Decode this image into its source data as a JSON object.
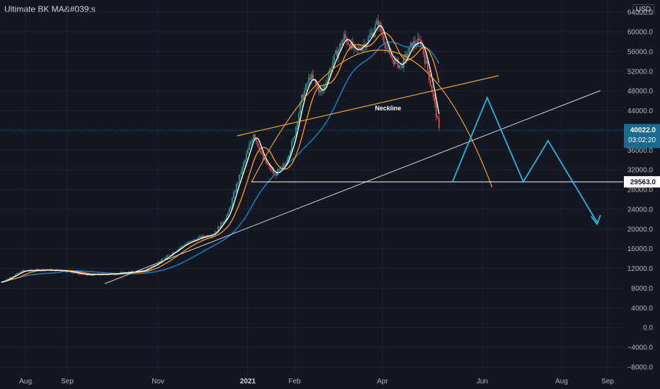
{
  "header": {
    "title": "Ultimate BK MA&#039;s",
    "currency": "USD"
  },
  "colors": {
    "background": "#131722",
    "grid": "#1e222d",
    "axis_text": "#b2b5be",
    "candle_up": "#26a69a",
    "candle_down": "#ef5350",
    "ma_fast": "#ffffff",
    "ma_mid": "#f7931a",
    "ma_slow": "#1f78b4",
    "arc": "#f0a030",
    "neckline": "#f0a030",
    "trendline": "#d1d4dc",
    "projection": "#29b6d6",
    "support": "#ffffff"
  },
  "chart_data": {
    "type": "candlestick",
    "title": "",
    "xlabel": "",
    "ylabel": "",
    "x_ticks": [
      "Aug",
      "Sep",
      "Nov",
      "2021",
      "Feb",
      "Apr",
      "Jun",
      "Aug",
      "Sep"
    ],
    "y_ticks": [
      -8000,
      -4000,
      0,
      4000,
      8000,
      12000,
      16000,
      20000,
      24000,
      28000,
      32000,
      36000,
      40000,
      44000,
      48000,
      52000,
      56000,
      60000,
      64000
    ],
    "y_tick_labels": [
      "−8000.0",
      "−4000.0",
      "0.0",
      "4000.0",
      "8000.0",
      "12000.0",
      "16000.0",
      "20000.0",
      "24000.0",
      "28000.0",
      "32000.0",
      "36000.0",
      "40000.0",
      "44000.0",
      "48000.0",
      "52000.0",
      "56000.0",
      "60000.0",
      "64000.0"
    ],
    "ylim": [
      -9500,
      65500
    ],
    "price_series_approx": [
      {
        "day": 0,
        "close": 9200
      },
      {
        "day": 15,
        "close": 11500
      },
      {
        "day": 30,
        "close": 11700
      },
      {
        "day": 45,
        "close": 11500
      },
      {
        "day": 60,
        "close": 10700
      },
      {
        "day": 80,
        "close": 10900
      },
      {
        "day": 100,
        "close": 11500
      },
      {
        "day": 110,
        "close": 13000
      },
      {
        "day": 120,
        "close": 15000
      },
      {
        "day": 130,
        "close": 17000
      },
      {
        "day": 140,
        "close": 18200
      },
      {
        "day": 150,
        "close": 19000
      },
      {
        "day": 160,
        "close": 23000
      },
      {
        "day": 165,
        "close": 28000
      },
      {
        "day": 172,
        "close": 34000
      },
      {
        "day": 178,
        "close": 39500
      },
      {
        "day": 185,
        "close": 34000
      },
      {
        "day": 193,
        "close": 31000
      },
      {
        "day": 200,
        "close": 33000
      },
      {
        "day": 206,
        "close": 38000
      },
      {
        "day": 212,
        "close": 46500
      },
      {
        "day": 218,
        "close": 51000
      },
      {
        "day": 226,
        "close": 47500
      },
      {
        "day": 234,
        "close": 54000
      },
      {
        "day": 242,
        "close": 59000
      },
      {
        "day": 250,
        "close": 56000
      },
      {
        "day": 258,
        "close": 58000
      },
      {
        "day": 266,
        "close": 62000
      },
      {
        "day": 274,
        "close": 55000
      },
      {
        "day": 282,
        "close": 53000
      },
      {
        "day": 290,
        "close": 57500
      },
      {
        "day": 296,
        "close": 58000
      },
      {
        "day": 302,
        "close": 51000
      },
      {
        "day": 306,
        "close": 45000
      },
      {
        "day": 309,
        "close": 40022
      }
    ],
    "annotations": {
      "neckline_label": "Neckline",
      "current_price": "40022.0",
      "countdown": "03:02:20",
      "support_price": "29563.0",
      "support_value": 29563,
      "current_value": 40022
    }
  }
}
